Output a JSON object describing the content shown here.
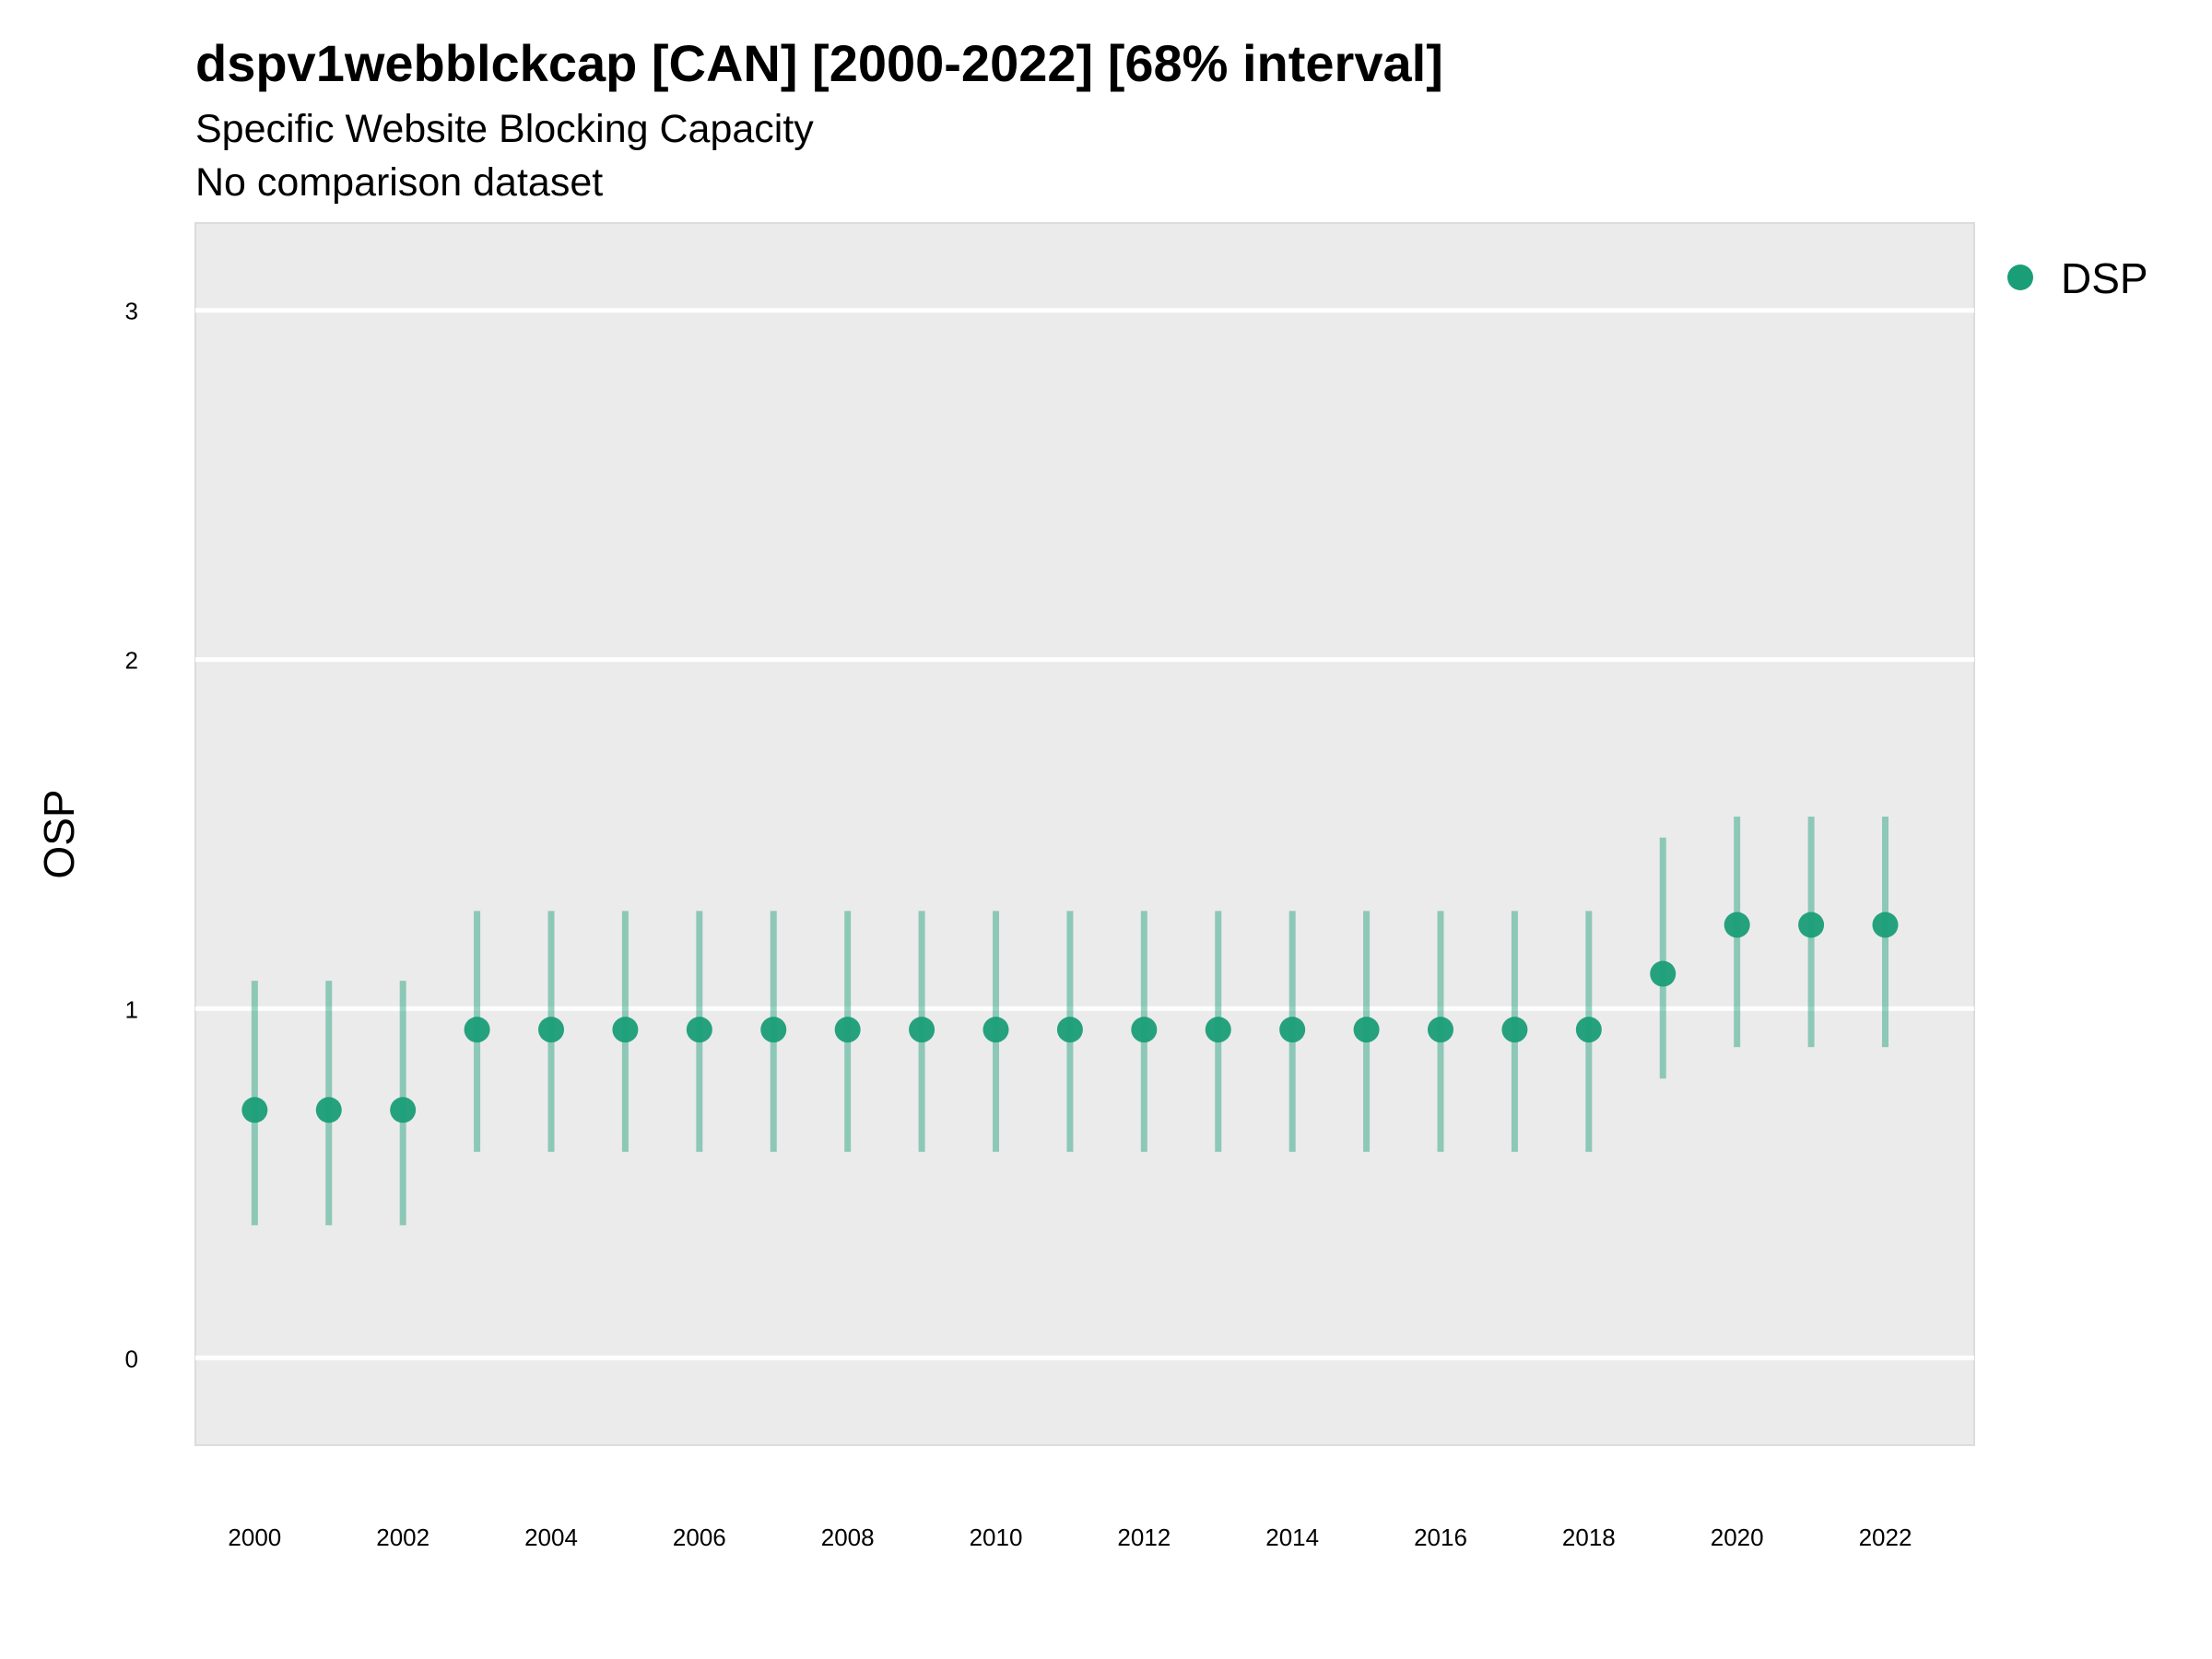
{
  "chart_data": {
    "type": "scatter",
    "title": "dspv1webblckcap [CAN] [2000-2022] [68% interval]",
    "subtitle": "Specific Website Blocking Capacity",
    "caption": "No comparison dataset",
    "xlabel": "",
    "ylabel": "OSP",
    "xlim": [
      1999.2,
      2023.2
    ],
    "ylim": [
      -0.25,
      3.25
    ],
    "x_ticks": [
      "2000",
      "2002",
      "2004",
      "2006",
      "2008",
      "2010",
      "2012",
      "2014",
      "2016",
      "2018",
      "2020",
      "2022"
    ],
    "y_ticks": [
      "0",
      "1",
      "2",
      "3"
    ],
    "grid": true,
    "legend_position": "right",
    "series": [
      {
        "name": "DSP",
        "color": "#1a9e77",
        "x": [
          2000,
          2001,
          2002,
          2003,
          2004,
          2005,
          2006,
          2007,
          2008,
          2009,
          2010,
          2011,
          2012,
          2013,
          2014,
          2015,
          2016,
          2017,
          2018,
          2019,
          2020,
          2021,
          2022
        ],
        "y": [
          0.71,
          0.71,
          0.71,
          0.94,
          0.94,
          0.94,
          0.94,
          0.94,
          0.94,
          0.94,
          0.94,
          0.94,
          0.94,
          0.94,
          0.94,
          0.94,
          0.94,
          0.94,
          0.94,
          1.1,
          1.24,
          1.24,
          1.24
        ],
        "lower": [
          0.38,
          0.38,
          0.38,
          0.59,
          0.59,
          0.59,
          0.59,
          0.59,
          0.59,
          0.59,
          0.59,
          0.59,
          0.59,
          0.59,
          0.59,
          0.59,
          0.59,
          0.59,
          0.59,
          0.8,
          0.89,
          0.89,
          0.89
        ],
        "upper": [
          1.08,
          1.08,
          1.08,
          1.28,
          1.28,
          1.28,
          1.28,
          1.28,
          1.28,
          1.28,
          1.28,
          1.28,
          1.28,
          1.28,
          1.28,
          1.28,
          1.28,
          1.28,
          1.28,
          1.49,
          1.55,
          1.55,
          1.55
        ]
      }
    ]
  }
}
